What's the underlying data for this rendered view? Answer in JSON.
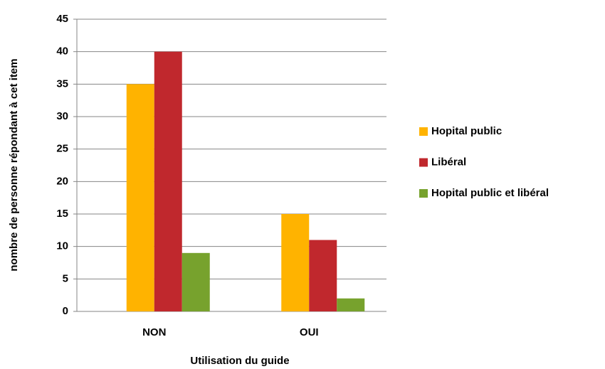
{
  "chart_data": {
    "type": "bar",
    "categories": [
      "NON",
      "OUI"
    ],
    "series": [
      {
        "name": "Hopital public",
        "color": "#ffb300",
        "values": [
          35,
          15
        ]
      },
      {
        "name": "Libéral",
        "color": "#c0282d",
        "values": [
          40,
          11
        ]
      },
      {
        "name": "Hopital public et libéral",
        "color": "#77a22d",
        "values": [
          9,
          2
        ]
      }
    ],
    "xlabel": "Utilisation du guide",
    "ylabel": "nombre de personne répondant à cet item",
    "ylim": [
      0,
      45
    ],
    "yticks": [
      0,
      5,
      10,
      15,
      20,
      25,
      30,
      35,
      40,
      45
    ],
    "grid": true,
    "legend": "right"
  }
}
